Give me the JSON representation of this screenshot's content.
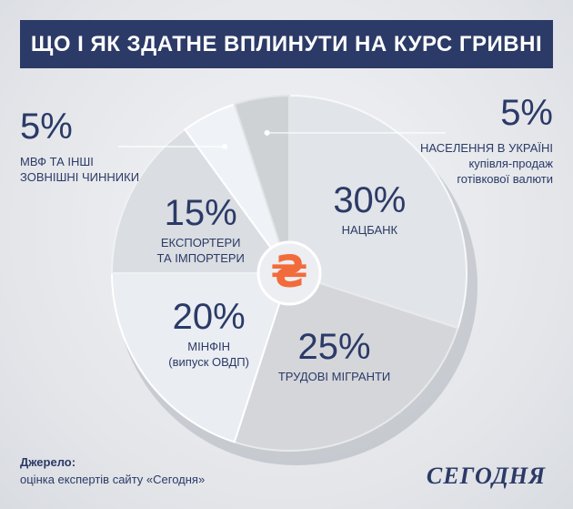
{
  "chart_data": {
    "type": "pie",
    "title": "ЩО І ЯК ЗДАТНЕ ВПЛИНУТИ НА КУРС ГРИВНІ",
    "categories": [
      "НАЦБАНК",
      "ТРУДОВІ МІГРАНТИ",
      "МІНФІН\n(випуск ОВДП)",
      "ЕКСПОРТЕРИ\nТА ІМПОРТЕРИ",
      "МВФ ТА ІНШІ\nЗОВНІШНІ ЧИННИКИ",
      "НАСЕЛЕННЯ В УКРАЇНІ\nкупівля-продаж\nготівкової валюти"
    ],
    "values": [
      30,
      25,
      20,
      15,
      5,
      5
    ],
    "value_labels": [
      "30%",
      "25%",
      "20%",
      "15%",
      "5%",
      "5%"
    ],
    "color": "#e1e4e8",
    "center_symbol": "₴",
    "source_label": "Джерело:",
    "source": "оцінка експертів сайту «Сегодня»",
    "logo": "СЕГОДНЯ"
  }
}
